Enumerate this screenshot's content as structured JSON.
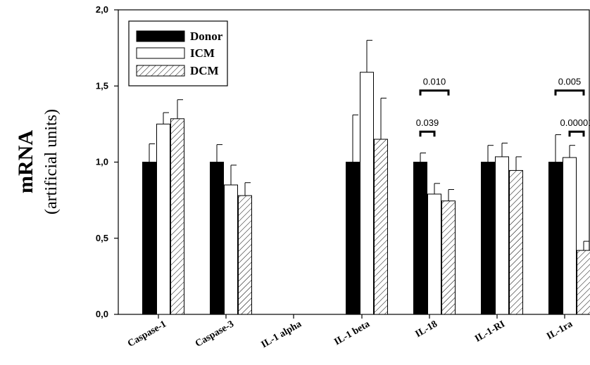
{
  "chart_data": {
    "type": "bar",
    "ylabel_main": "mRNA",
    "ylabel_sub": "(artificial units)",
    "ylim": [
      0,
      2.0
    ],
    "yticks": [
      "0,0",
      "0,5",
      "1,0",
      "1,5",
      "2,0"
    ],
    "ytick_values": [
      0,
      0.5,
      1.0,
      1.5,
      2.0
    ],
    "categories": [
      "Caspase-1",
      "Caspase-3",
      "IL-1 alpha",
      "IL-1 beta",
      "IL-18",
      "IL-1-RI",
      "IL-1ra"
    ],
    "legend_position": "top-left",
    "series": [
      {
        "name": "Donor",
        "fill": "solid",
        "color": "#000000",
        "values": [
          1.0,
          1.0,
          null,
          1.0,
          1.0,
          1.0,
          1.0
        ],
        "errors": [
          0.12,
          0.115,
          null,
          0.31,
          0.06,
          0.11,
          0.18
        ]
      },
      {
        "name": "ICM",
        "fill": "white",
        "color": "#ffffff",
        "values": [
          1.25,
          0.85,
          null,
          1.59,
          0.79,
          1.035,
          1.03
        ],
        "errors": [
          0.075,
          0.13,
          null,
          0.21,
          0.07,
          0.09,
          0.08
        ]
      },
      {
        "name": "DCM",
        "fill": "hatched",
        "color": "#ffffff",
        "values": [
          1.285,
          0.78,
          null,
          1.15,
          0.745,
          0.945,
          0.42
        ],
        "errors": [
          0.125,
          0.085,
          null,
          0.27,
          0.075,
          0.09,
          0.06
        ]
      }
    ],
    "annotations": [
      {
        "text": "0.010",
        "category": "IL-18",
        "from_series": 0,
        "to_series": 2,
        "y": 1.47
      },
      {
        "text": "0.039",
        "category": "IL-18",
        "from_series": 0,
        "to_series": 1,
        "y": 1.2
      },
      {
        "text": "0.005",
        "category": "IL-1ra",
        "from_series": 0,
        "to_series": 2,
        "y": 1.47
      },
      {
        "text": "0.00001",
        "category": "IL-1ra",
        "from_series": 1,
        "to_series": 2,
        "y": 1.2
      }
    ]
  }
}
